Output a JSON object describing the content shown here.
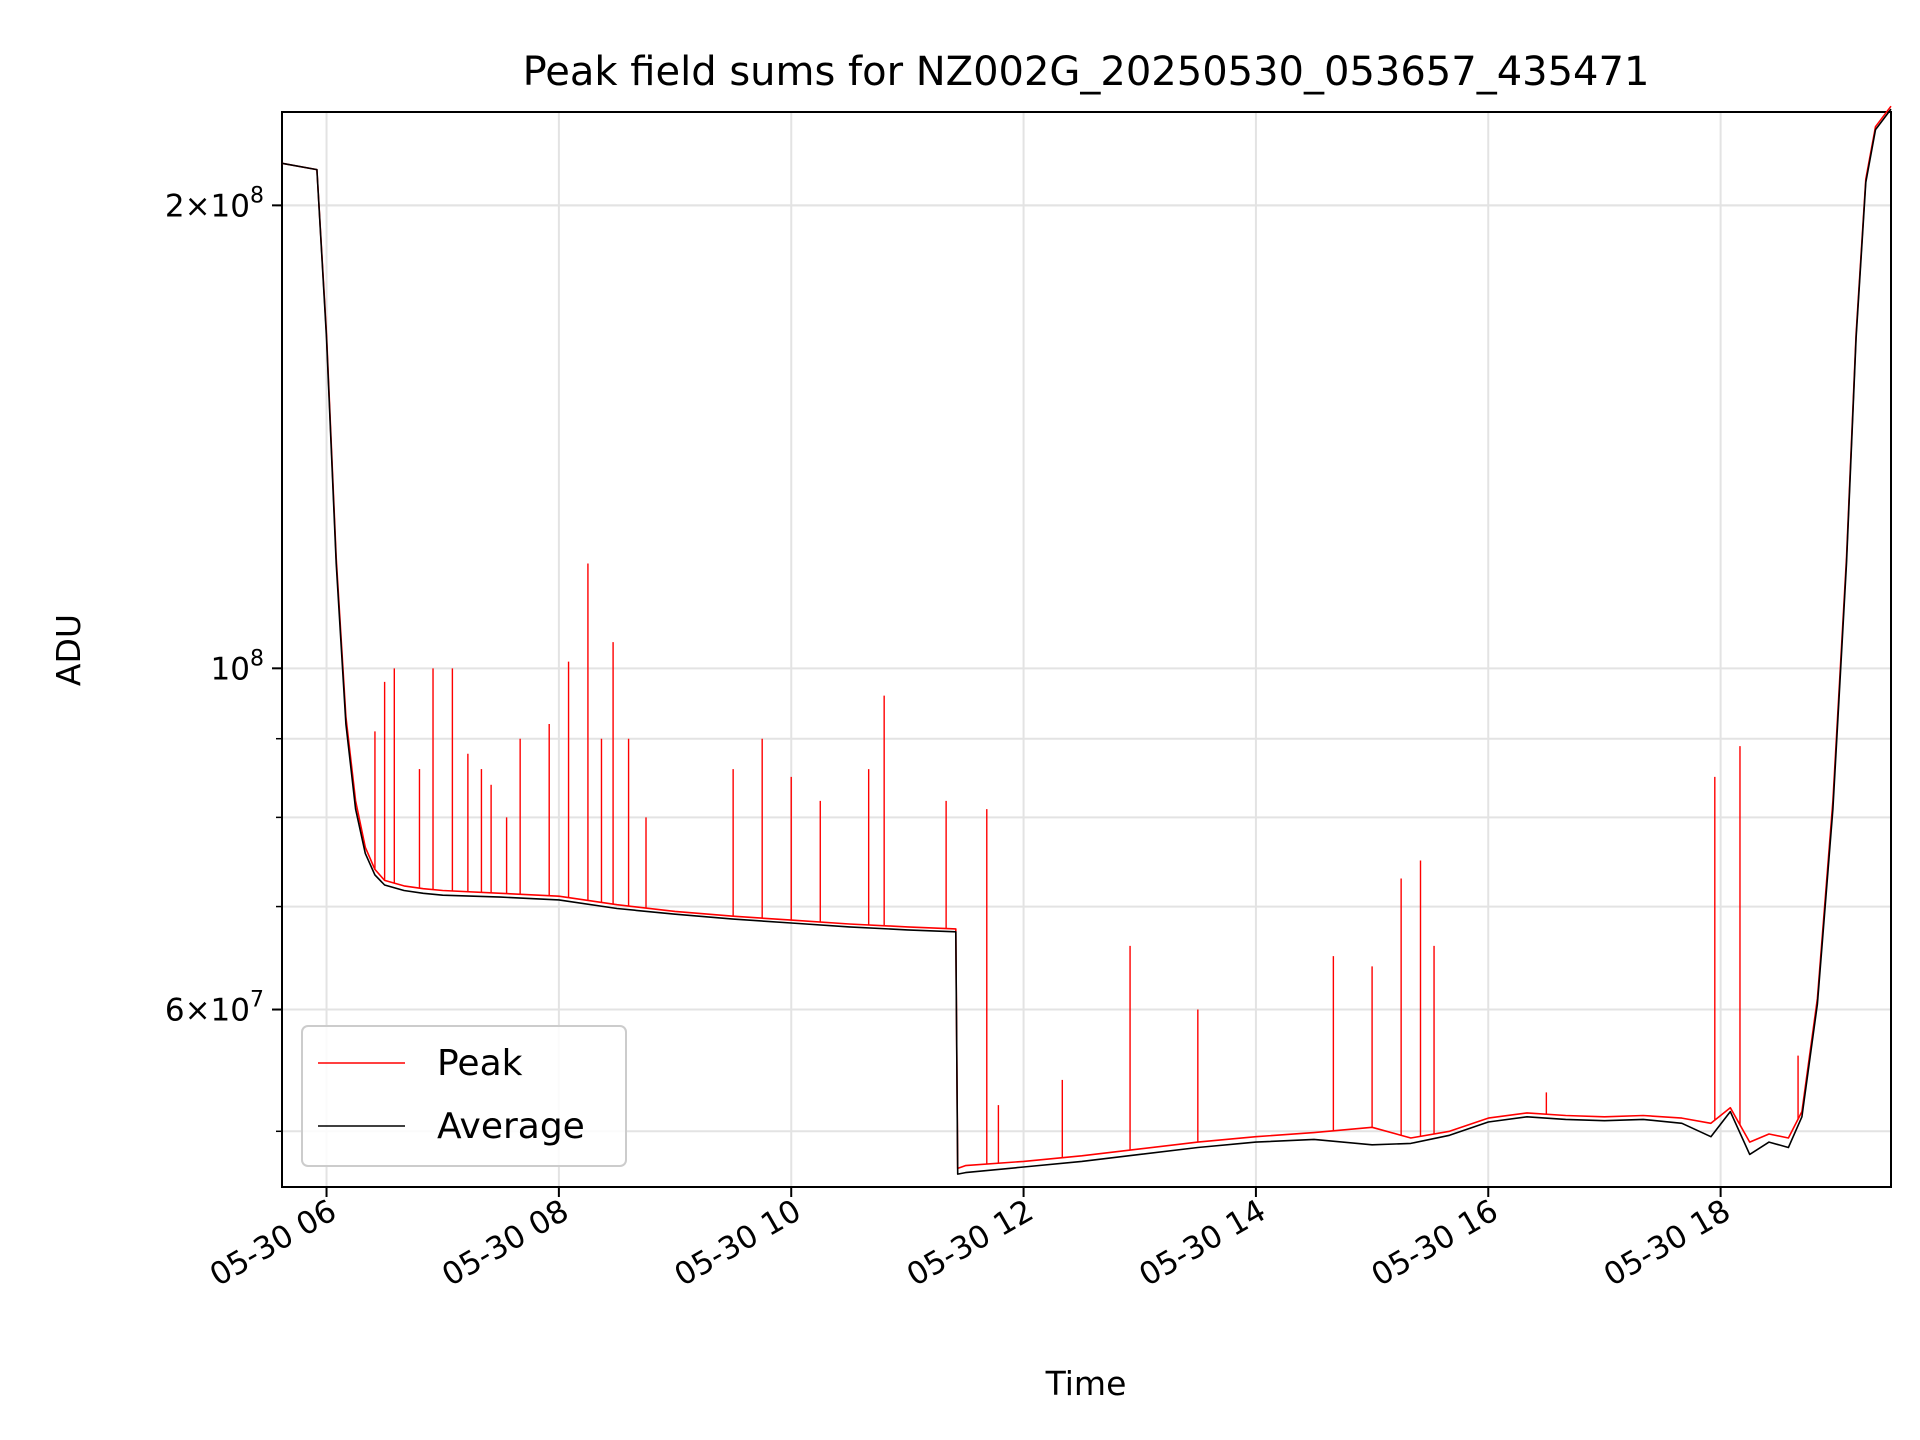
{
  "chart_data": {
    "type": "line",
    "title": "Peak field sums for NZ002G_20250530_053657_435471",
    "xlabel": "Time",
    "ylabel": "ADU",
    "y_scale": "log",
    "xlim": [
      "05-30 05:37",
      "05-30 19:28"
    ],
    "ylim": [
      46000000.0,
      230000000.0
    ],
    "x_ticks": [
      "05-30 06",
      "05-30 08",
      "05-30 10",
      "05-30 12",
      "05-30 14",
      "05-30 16",
      "05-30 18"
    ],
    "y_ticks": [
      {
        "value": 200000000.0,
        "mantissa": "2",
        "base": "10",
        "exp": "8"
      },
      {
        "value": 100000000.0,
        "mantissa": "",
        "base": "10",
        "exp": "8"
      },
      {
        "value": 60000000.0,
        "mantissa": "6",
        "base": "10",
        "exp": "7"
      }
    ],
    "grid": true,
    "legend_position": "lower-left",
    "series": [
      {
        "name": "Peak",
        "color": "#ff0000",
        "x": [
          "05-30 05:37",
          "05-30 05:55",
          "05-30 06:00",
          "05-30 06:05",
          "05-30 06:10",
          "05-30 06:15",
          "05-30 06:20",
          "05-30 06:25",
          "05-30 06:30",
          "05-30 06:40",
          "05-30 06:50",
          "05-30 07:00",
          "05-30 07:30",
          "05-30 08:00",
          "05-30 08:30",
          "05-30 09:00",
          "05-30 09:30",
          "05-30 10:00",
          "05-30 10:30",
          "05-30 11:00",
          "05-30 11:25",
          "05-30 11:26",
          "05-30 11:30",
          "05-30 12:00",
          "05-30 12:30",
          "05-30 13:00",
          "05-30 13:30",
          "05-30 14:00",
          "05-30 14:30",
          "05-30 15:00",
          "05-30 15:20",
          "05-30 15:40",
          "05-30 16:00",
          "05-30 16:20",
          "05-30 16:40",
          "05-30 17:00",
          "05-30 17:20",
          "05-30 17:40",
          "05-30 17:55",
          "05-30 18:05",
          "05-30 18:15",
          "05-30 18:25",
          "05-30 18:35",
          "05-30 18:42",
          "05-30 18:50",
          "05-30 18:58",
          "05-30 19:05",
          "05-30 19:10",
          "05-30 19:15",
          "05-30 19:20",
          "05-30 19:28"
        ],
        "y": [
          213000000.0,
          211000000.0,
          165000000.0,
          118000000.0,
          93000000.0,
          82000000.0,
          76500000.0,
          74000000.0,
          72800000.0,
          72200000.0,
          71900000.0,
          71700000.0,
          71400000.0,
          71100000.0,
          70200000.0,
          69500000.0,
          69000000.0,
          68600000.0,
          68200000.0,
          67900000.0,
          67700000.0,
          47300000.0,
          47500000.0,
          47800000.0,
          48200000.0,
          48700000.0,
          49200000.0,
          49600000.0,
          49900000.0,
          50300000.0,
          49500000.0,
          50000000.0,
          51000000.0,
          51400000.0,
          51200000.0,
          51100000.0,
          51200000.0,
          51000000.0,
          50600000.0,
          51800000.0,
          49200000.0,
          49800000.0,
          49500000.0,
          51500000.0,
          61000000.0,
          82000000.0,
          118000000.0,
          165000000.0,
          208000000.0,
          225000000.0,
          232000000.0
        ]
      },
      {
        "name": "Average",
        "color": "#000000",
        "x": [
          "05-30 05:37",
          "05-30 05:55",
          "05-30 06:00",
          "05-30 06:05",
          "05-30 06:10",
          "05-30 06:15",
          "05-30 06:20",
          "05-30 06:25",
          "05-30 06:30",
          "05-30 06:40",
          "05-30 06:50",
          "05-30 07:00",
          "05-30 07:30",
          "05-30 08:00",
          "05-30 08:30",
          "05-30 09:00",
          "05-30 09:30",
          "05-30 10:00",
          "05-30 10:30",
          "05-30 11:00",
          "05-30 11:25",
          "05-30 11:26",
          "05-30 11:30",
          "05-30 12:00",
          "05-30 12:30",
          "05-30 13:00",
          "05-30 13:30",
          "05-30 14:00",
          "05-30 14:30",
          "05-30 15:00",
          "05-30 15:20",
          "05-30 15:40",
          "05-30 16:00",
          "05-30 16:20",
          "05-30 16:40",
          "05-30 17:00",
          "05-30 17:20",
          "05-30 17:40",
          "05-30 17:55",
          "05-30 18:05",
          "05-30 18:15",
          "05-30 18:25",
          "05-30 18:35",
          "05-30 18:42",
          "05-30 18:50",
          "05-30 18:58",
          "05-30 19:05",
          "05-30 19:10",
          "05-30 19:15",
          "05-30 19:20",
          "05-30 19:28"
        ],
        "y": [
          213000000.0,
          211000000.0,
          164000000.0,
          117000000.0,
          92000000.0,
          81000000.0,
          75800000.0,
          73400000.0,
          72300000.0,
          71700000.0,
          71400000.0,
          71200000.0,
          71000000.0,
          70700000.0,
          69800000.0,
          69200000.0,
          68700000.0,
          68300000.0,
          67900000.0,
          67600000.0,
          67400000.0,
          46900000.0,
          47000000.0,
          47400000.0,
          47800000.0,
          48300000.0,
          48800000.0,
          49200000.0,
          49400000.0,
          49000000.0,
          49100000.0,
          49700000.0,
          50700000.0,
          51100000.0,
          50900000.0,
          50800000.0,
          50900000.0,
          50600000.0,
          49600000.0,
          51500000.0,
          48300000.0,
          49200000.0,
          48800000.0,
          51100000.0,
          60500000.0,
          81000000.0,
          117000000.0,
          164000000.0,
          207000000.0,
          224000000.0,
          231000000.0
        ]
      }
    ],
    "spikes": {
      "series": "Peak",
      "x": [
        "05-30 06:25",
        "05-30 06:30",
        "05-30 06:35",
        "05-30 06:48",
        "05-30 06:55",
        "05-30 07:05",
        "05-30 07:13",
        "05-30 07:20",
        "05-30 07:25",
        "05-30 07:33",
        "05-30 07:40",
        "05-30 07:55",
        "05-30 08:05",
        "05-30 08:15",
        "05-30 08:22",
        "05-30 08:28",
        "05-30 08:36",
        "05-30 08:45",
        "05-30 09:30",
        "05-30 09:45",
        "05-30 10:00",
        "05-30 10:15",
        "05-30 10:40",
        "05-30 10:48",
        "05-30 11:20",
        "05-30 11:41",
        "05-30 11:47",
        "05-30 12:20",
        "05-30 12:55",
        "05-30 13:30",
        "05-30 14:40",
        "05-30 15:00",
        "05-30 15:15",
        "05-30 15:25",
        "05-30 15:32",
        "05-30 16:30",
        "05-30 17:57",
        "05-30 18:10",
        "05-30 18:40"
      ],
      "y": [
        91000000.0,
        98000000.0,
        100000000.0,
        86000000.0,
        100000000.0,
        100000000.0,
        88000000.0,
        86000000.0,
        84000000.0,
        80000000.0,
        90000000.0,
        92000000.0,
        101000000.0,
        117000000.0,
        90000000.0,
        104000000.0,
        90000000.0,
        80000000.0,
        86000000.0,
        90000000.0,
        85000000.0,
        82000000.0,
        86000000.0,
        96000000.0,
        82000000.0,
        81000000.0,
        52000000.0,
        54000000.0,
        66000000.0,
        60000000.0,
        65000000.0,
        64000000.0,
        73000000.0,
        75000000.0,
        66000000.0,
        53000000.0,
        85000000.0,
        89000000.0,
        56000000.0
      ]
    }
  }
}
